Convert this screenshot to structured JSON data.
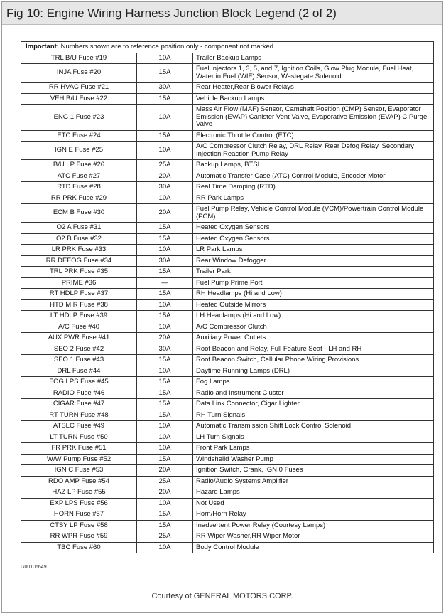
{
  "header": {
    "title": "Fig 10: Engine Wiring Harness Junction Block Legend (2 of 2)"
  },
  "important": {
    "label": "Important:",
    "text": "Numbers shown are to reference position only - component not marked."
  },
  "table": {
    "rows": [
      [
        "TRL B/U Fuse #19",
        "10A",
        "Trailer Backup Lamps"
      ],
      [
        "INJA Fuse #20",
        "15A",
        "Fuel Injectors 1, 3, 5, and 7, Ignition Coils, Glow Plug Module, Fuel Heat, Water in Fuel (WIF) Sensor, Wastegate Solenoid"
      ],
      [
        "RR HVAC Fuse #21",
        "30A",
        "Rear Heater,Rear Blower Relays"
      ],
      [
        "VEH B/U Fuse #22",
        "15A",
        "Vehicle Backup Lamps"
      ],
      [
        "ENG 1 Fuse #23",
        "10A",
        "Mass Air Flow (MAF) Sensor, Camshaft Position (CMP) Sensor, Evaporator Emission (EVAP) Canister Vent Valve, Evaporative Emission (EVAP) C Purge Valve"
      ],
      [
        "ETC Fuse #24",
        "15A",
        "Electronic Throttle Control (ETC)"
      ],
      [
        "IGN E Fuse #25",
        "10A",
        "A/C Compressor Clutch Relay, DRL Relay, Rear Defog Relay, Secondary Injection Reaction Pump Relay"
      ],
      [
        "B/U LP Fuse #26",
        "25A",
        "Backup Lamps, BTSI"
      ],
      [
        "ATC Fuse #27",
        "20A",
        "Automatic Transfer Case (ATC) Control Module, Encoder Motor"
      ],
      [
        "RTD Fuse #28",
        "30A",
        "Real Time Damping (RTD)"
      ],
      [
        "RR PRK Fuse #29",
        "10A",
        "RR Park Lamps"
      ],
      [
        "ECM B Fuse #30",
        "20A",
        "Fuel Pump Relay, Vehicle Control Module (VCM)/Powertrain Control Module (PCM)"
      ],
      [
        "O2 A Fuse #31",
        "15A",
        "Heated Oxygen Sensors"
      ],
      [
        "O2 B Fuse #32",
        "15A",
        "Heated Oxygen Sensors"
      ],
      [
        "LR PRK Fuse #33",
        "10A",
        "LR Park Lamps"
      ],
      [
        "RR DEFOG Fuse #34",
        "30A",
        "Rear Window Defogger"
      ],
      [
        "TRL PRK Fuse #35",
        "15A",
        "Trailer Park"
      ],
      [
        "PRIME #36",
        "—",
        "Fuel Pump Prime Port"
      ],
      [
        "RT HDLP Fuse #37",
        "15A",
        "RH Headlamps (Hi and Low)"
      ],
      [
        "HTD MIR Fuse #38",
        "10A",
        "Heated Outside Mirrors"
      ],
      [
        "LT HDLP Fuse #39",
        "15A",
        "LH Headlamps (Hi and Low)"
      ],
      [
        "A/C Fuse #40",
        "10A",
        "A/C Compressor Clutch"
      ],
      [
        "AUX PWR Fuse #41",
        "20A",
        "Auxiliary Power Outlets"
      ],
      [
        "SEO 2 Fuse #42",
        "30A",
        "Roof Beacon and Relay, Full Feature Seat - LH and RH"
      ],
      [
        "SEO 1 Fuse #43",
        "15A",
        "Roof Beacon Switch, Cellular Phone Wiring Provisions"
      ],
      [
        "DRL Fuse #44",
        "10A",
        "Daytime Running Lamps (DRL)"
      ],
      [
        "FOG LPS Fuse #45",
        "15A",
        "Fog Lamps"
      ],
      [
        "RADIO Fuse #46",
        "15A",
        "Radio and Instrument Cluster"
      ],
      [
        "CIGAR Fuse #47",
        "15A",
        "Data Link Connector, Cigar Lighter"
      ],
      [
        "RT TURN Fuse #48",
        "15A",
        "RH Turn Signals"
      ],
      [
        "ATSLC Fuse #49",
        "10A",
        "Automatic Transmission Shift Lock Control Solenoid"
      ],
      [
        "LT TURN Fuse #50",
        "10A",
        "LH Turn Signals"
      ],
      [
        "FR PRK Fuse #51",
        "10A",
        "Front Park Lamps"
      ],
      [
        "W/W Pump Fuse #52",
        "15A",
        "Windsheild Washer Pump"
      ],
      [
        "IGN C Fuse #53",
        "20A",
        "Ignition Switch, Crank, IGN 0 Fuses"
      ],
      [
        "RDO AMP Fuse #54",
        "25A",
        "Radio/Audio Systems Amplifier"
      ],
      [
        "HAZ LP Fuse #55",
        "20A",
        "Hazard Lamps"
      ],
      [
        "EXP LPS Fuse #56",
        "10A",
        "Not Used"
      ],
      [
        "HORN Fuse #57",
        "15A",
        "Horn/Horn Relay"
      ],
      [
        "CTSY LP Fuse #58",
        "15A",
        "Inadvertent Power Relay (Courtesy Lamps)"
      ],
      [
        "RR WPR Fuse #59",
        "25A",
        "RR Wiper Washer,RR Wiper Motor"
      ],
      [
        "TBC Fuse #60",
        "10A",
        "Body Control Module"
      ]
    ]
  },
  "footer": {
    "code": "G00106649",
    "credit": "Courtesy of GENERAL MOTORS CORP."
  }
}
